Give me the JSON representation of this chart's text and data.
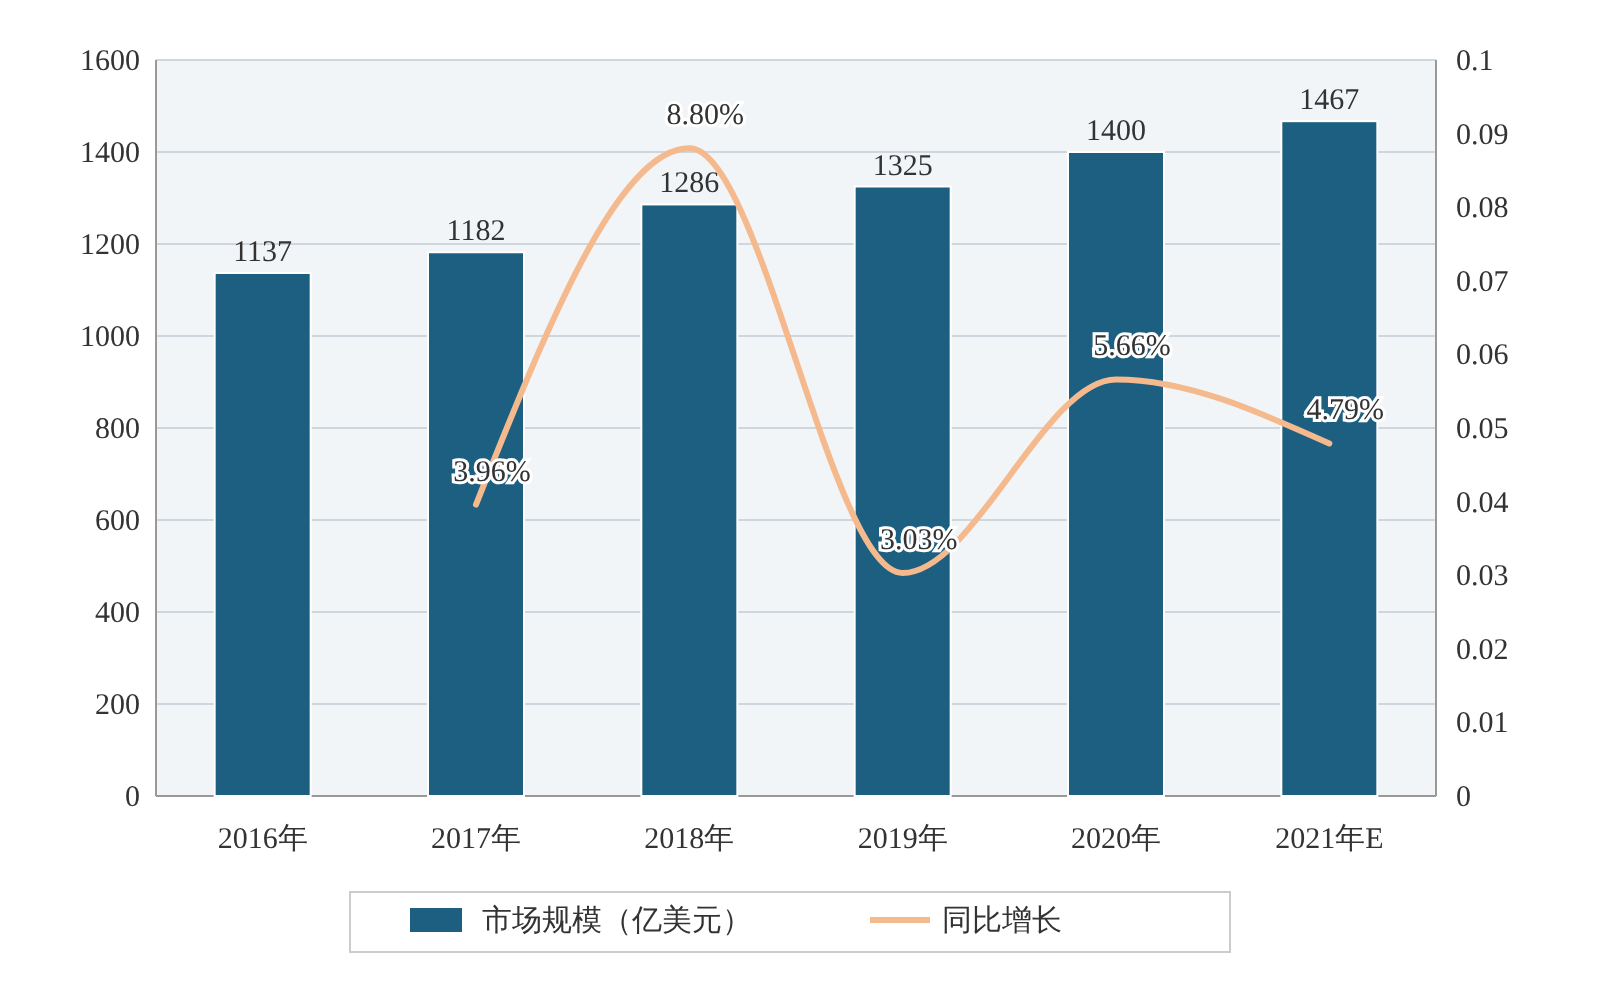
{
  "chart_data": {
    "type": "bar",
    "categories": [
      "2016年",
      "2017年",
      "2018年",
      "2019年",
      "2020年",
      "2021年E"
    ],
    "series": [
      {
        "name": "市场规模（亿美元）",
        "color": "#1d5f80",
        "values": [
          1137,
          1182,
          1286,
          1325,
          1400,
          1467
        ]
      },
      {
        "name": "同比增长",
        "type": "line",
        "axis": "y2",
        "color": "#f5b98e",
        "values": [
          null,
          0.0396,
          0.088,
          0.0303,
          0.0566,
          0.0479
        ],
        "value_labels": [
          null,
          "3.96%",
          "8.80%",
          "3.03%",
          "5.66%",
          "4.79%"
        ]
      }
    ],
    "data_labels": true,
    "ylim": [
      0,
      1600
    ],
    "yticks": [
      0,
      200,
      400,
      600,
      800,
      1000,
      1200,
      1400,
      1600
    ],
    "y2lim": [
      0,
      0.1
    ],
    "y2ticks": [
      0,
      0.01,
      0.02,
      0.03,
      0.04,
      0.05,
      0.06,
      0.07,
      0.08,
      0.09,
      0.1
    ],
    "grid": "y",
    "legend": "bottom"
  }
}
